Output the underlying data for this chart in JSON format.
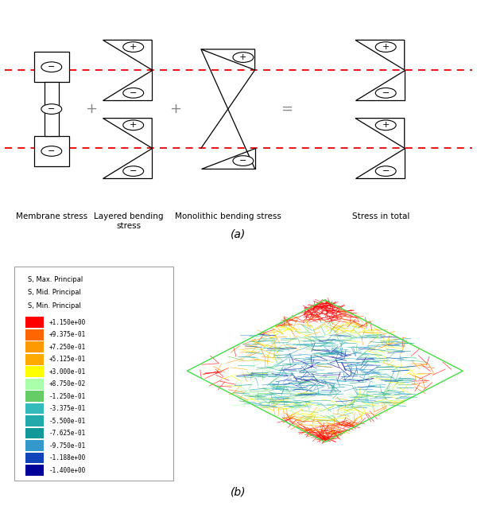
{
  "title_a": "(a)",
  "title_b": "(b)",
  "labels": [
    "Membrane stress",
    "Layered bending\nstress",
    "Monolithic bending stress",
    "Stress in total"
  ],
  "operators": [
    "+",
    "+",
    "="
  ],
  "colorbar_labels": [
    "+1.150e+00",
    "+9.375e-01",
    "+7.250e-01",
    "+5.125e-01",
    "+3.000e-01",
    "+8.750e-02",
    "-1.250e-01",
    "-3.375e-01",
    "-5.500e-01",
    "-7.625e-01",
    "-9.750e-01",
    "-1.188e+00",
    "-1.400e+00"
  ],
  "colorbar_colors": [
    "#FF0000",
    "#FF6600",
    "#FF9900",
    "#FFAA00",
    "#FFFF00",
    "#AAFFAA",
    "#66CC66",
    "#33BBBB",
    "#22AAAA",
    "#119999",
    "#3399CC",
    "#1144BB",
    "#000099"
  ],
  "legend_title_lines": [
    "S, Max. Principal",
    "S, Mid. Principal",
    "S, Min. Principal"
  ],
  "dashed_color": "#EE0000",
  "background": "#FFFFFF",
  "figure_width": 6.0,
  "figure_height": 6.41
}
